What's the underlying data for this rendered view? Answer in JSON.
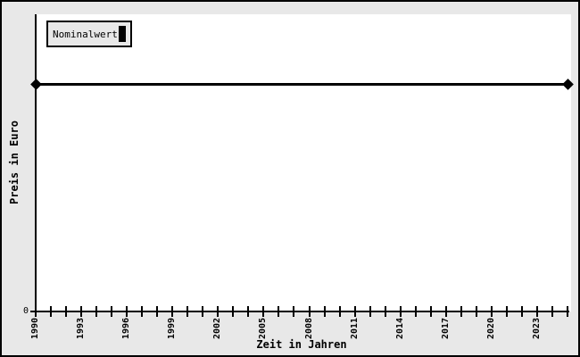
{
  "window": {
    "background": "#e8e8e8",
    "plot_background": "#ffffff",
    "border_color": "#000000"
  },
  "chart_data": {
    "type": "line",
    "title": "",
    "xlabel": "Zeit in Jahren",
    "ylabel": "Preis in Euro",
    "x_range": [
      1990,
      2025
    ],
    "x_tick_interval": 1,
    "x_tick_labels": [
      "1990",
      "1993",
      "1996",
      "1999",
      "2002",
      "2005",
      "2008",
      "2011",
      "2014",
      "2017",
      "2020",
      "2023"
    ],
    "y_tick_labels": [
      "0"
    ],
    "grid": false,
    "legend": {
      "position": "top-left",
      "entries": [
        "Nominalwert"
      ]
    },
    "series": [
      {
        "name": "Nominalwert",
        "color": "#000000",
        "line_width": 3,
        "marker": "diamond",
        "constant": true,
        "x": [
          1990,
          2025
        ],
        "y_axis_fraction_from_bottom": 0.765
      }
    ]
  }
}
